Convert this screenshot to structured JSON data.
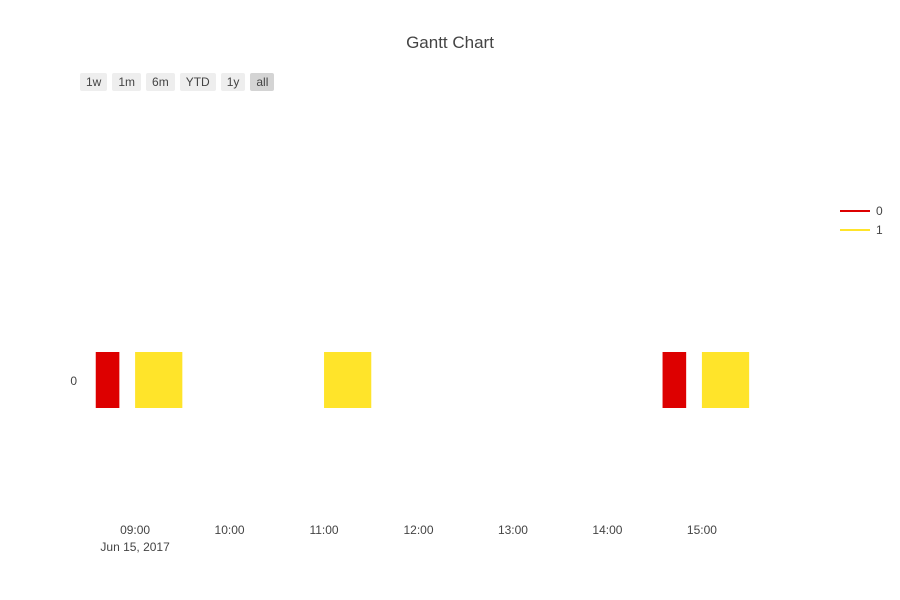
{
  "chart_data": {
    "type": "gantt",
    "title": "Gantt Chart",
    "range_selector": {
      "buttons": [
        {
          "label": "1w",
          "active": false
        },
        {
          "label": "1m",
          "active": false
        },
        {
          "label": "6m",
          "active": false
        },
        {
          "label": "YTD",
          "active": false
        },
        {
          "label": "1y",
          "active": false
        },
        {
          "label": "all",
          "active": true
        }
      ]
    },
    "x_axis": {
      "type": "date",
      "range": [
        "2017-06-15 08:25",
        "2017-06-15 16:15"
      ],
      "ticks": [
        {
          "time": "09:00",
          "label": "09:00",
          "sublabel": "Jun 15, 2017"
        },
        {
          "time": "10:00",
          "label": "10:00",
          "sublabel": ""
        },
        {
          "time": "11:00",
          "label": "11:00",
          "sublabel": ""
        },
        {
          "time": "12:00",
          "label": "12:00",
          "sublabel": ""
        },
        {
          "time": "13:00",
          "label": "13:00",
          "sublabel": ""
        },
        {
          "time": "14:00",
          "label": "14:00",
          "sublabel": ""
        },
        {
          "time": "15:00",
          "label": "15:00",
          "sublabel": ""
        }
      ]
    },
    "y_axis": {
      "categories": [
        "0"
      ]
    },
    "series": [
      {
        "name": "0",
        "color": "#dd0000"
      },
      {
        "name": "1",
        "color": "#ffe42a"
      }
    ],
    "tasks": [
      {
        "task": "0",
        "start": "08:35",
        "end": "08:50",
        "group": "0"
      },
      {
        "task": "0",
        "start": "09:00",
        "end": "09:30",
        "group": "1"
      },
      {
        "task": "0",
        "start": "11:00",
        "end": "11:30",
        "group": "1"
      },
      {
        "task": "0",
        "start": "14:35",
        "end": "14:50",
        "group": "0"
      },
      {
        "task": "0",
        "start": "15:00",
        "end": "15:30",
        "group": "1"
      }
    ],
    "legend_position": "right"
  }
}
